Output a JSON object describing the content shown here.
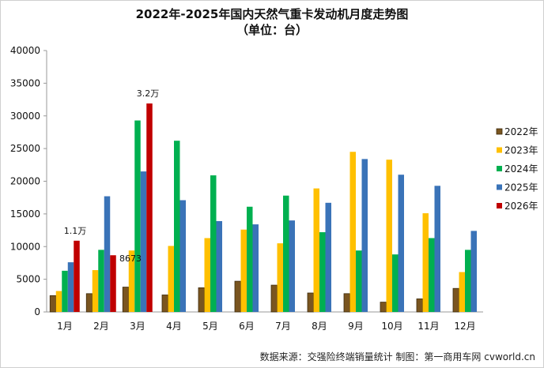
{
  "chart_data": {
    "type": "bar",
    "title": "2022年-2025年国内天然气重卡发动机月度走势图",
    "subtitle": "（单位：台）",
    "categories": [
      "1月",
      "2月",
      "3月",
      "4月",
      "5月",
      "6月",
      "7月",
      "8月",
      "9月",
      "10月",
      "11月",
      "12月"
    ],
    "series": [
      {
        "name": "2022年",
        "color": "#7a5520",
        "values": [
          2500,
          2800,
          3800,
          2600,
          3700,
          4700,
          4100,
          2900,
          2800,
          1500,
          2000,
          3600
        ]
      },
      {
        "name": "2023年",
        "color": "#ffc000",
        "values": [
          3200,
          6400,
          9400,
          10100,
          11300,
          12600,
          10500,
          18900,
          24500,
          23300,
          15100,
          6100
        ]
      },
      {
        "name": "2024年",
        "color": "#00b050",
        "values": [
          6300,
          9500,
          29300,
          26200,
          20900,
          16100,
          17800,
          12200,
          9400,
          8800,
          11300,
          9500
        ]
      },
      {
        "name": "2025年",
        "color": "#3a73b8",
        "values": [
          7600,
          17700,
          21500,
          17100,
          13900,
          13400,
          14000,
          16700,
          23400,
          21000,
          19300,
          12400
        ]
      },
      {
        "name": "2026年",
        "color": "#c00000",
        "values": [
          10900,
          8673,
          31900,
          null,
          null,
          null,
          null,
          null,
          null,
          null,
          null,
          null
        ]
      }
    ],
    "ylim": [
      0,
      40000
    ],
    "yticks": [
      "0",
      "5000",
      "10000",
      "15000",
      "20000",
      "25000",
      "30000",
      "35000",
      "40000"
    ],
    "annotations": [
      {
        "label": "1.1万",
        "category": "1月",
        "series": "2026年"
      },
      {
        "label": "8673",
        "category": "2月",
        "series": "2026年"
      },
      {
        "label": "3.2万",
        "category": "3月",
        "series": "2026年"
      }
    ],
    "legend_position": "right",
    "grid": false
  },
  "source_text": "数据来源：交强险终端销量统计   制图：第一商用车网 cvworld.cn"
}
